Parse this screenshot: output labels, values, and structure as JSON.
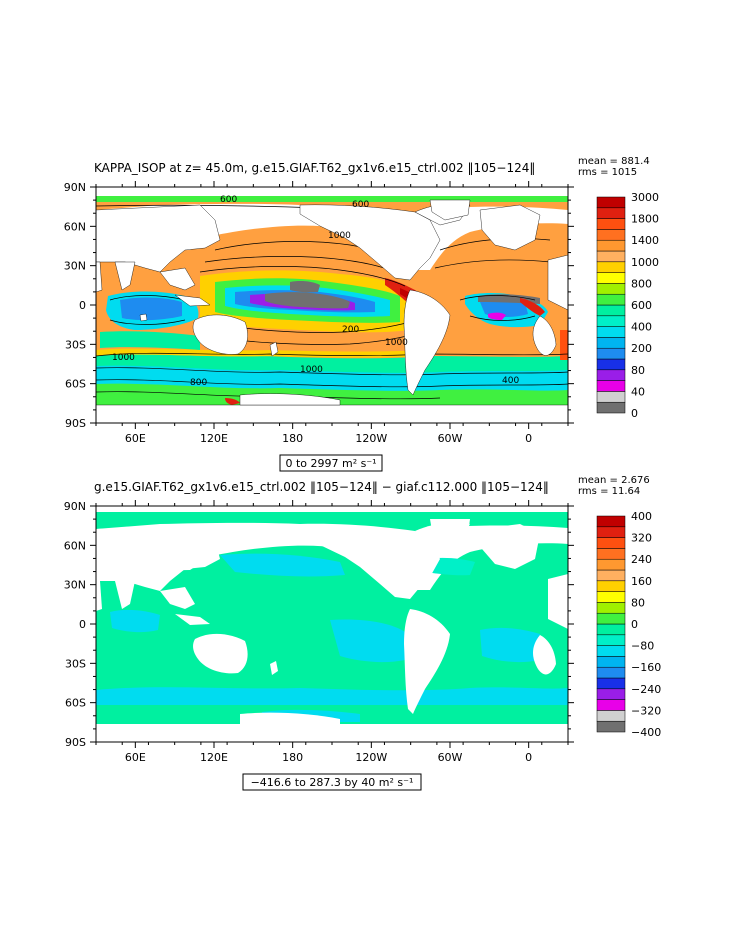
{
  "panel1": {
    "title": "KAPPA_ISOP at z=  45.0m, g.e15.GIAF.T62_gx1v6.e15_ctrl.002 ‖105−124‖",
    "stat_mean": "mean = 881.4",
    "stat_rms": "rms = 1015",
    "range_label": "0 to 2997 m² s⁻¹",
    "y_ticks": [
      "90N",
      "60N",
      "30N",
      "0",
      "30S",
      "60S",
      "90S"
    ],
    "x_ticks": [
      "60E",
      "120E",
      "180",
      "120W",
      "60W",
      "0"
    ],
    "colorbar_labels": [
      "3000",
      "1800",
      "1400",
      "1000",
      "800",
      "600",
      "400",
      "200",
      "80",
      "40",
      "0"
    ],
    "contour_labels": [
      "600",
      "1000",
      "1000",
      "1000",
      "1000",
      "800",
      "400",
      "200",
      "600"
    ]
  },
  "panel2": {
    "title": "g.e15.GIAF.T62_gx1v6.e15_ctrl.002 ‖105−124‖ − giaf.c112.000 ‖105−124‖",
    "stat_mean": "mean = 2.676",
    "stat_rms": "rms = 11.64",
    "range_label": "−416.6 to 287.3 by 40 m² s⁻¹",
    "y_ticks": [
      "90N",
      "60N",
      "30N",
      "0",
      "30S",
      "60S",
      "90S"
    ],
    "x_ticks": [
      "60E",
      "120E",
      "180",
      "120W",
      "60W",
      "0"
    ],
    "colorbar_labels": [
      "400",
      "320",
      "240",
      "160",
      "80",
      "0",
      "−80",
      "−160",
      "−240",
      "−320",
      "−400"
    ]
  },
  "colors": {
    "p1_scale": [
      "#707070",
      "#d0d0d0",
      "#e800e8",
      "#9a1ee8",
      "#1830e8",
      "#1e8cf0",
      "#00b4f0",
      "#00dcf0",
      "#00f0c8",
      "#00f0a0",
      "#40f040",
      "#a0f000",
      "#ffff00",
      "#ffd000",
      "#ffb060",
      "#ff9830",
      "#ff7020",
      "#ff5010",
      "#e02010",
      "#c00000"
    ],
    "p2_scale": [
      "#707070",
      "#d0d0d0",
      "#e800e8",
      "#9a1ee8",
      "#1830e8",
      "#1e8cf0",
      "#00b4f0",
      "#00dcf0",
      "#00f0c8",
      "#00f0a0",
      "#40f040",
      "#a0f000",
      "#ffff00",
      "#ffd000",
      "#ffb060",
      "#ff9830",
      "#ff7020",
      "#ff5010",
      "#e02010",
      "#c00000"
    ]
  }
}
